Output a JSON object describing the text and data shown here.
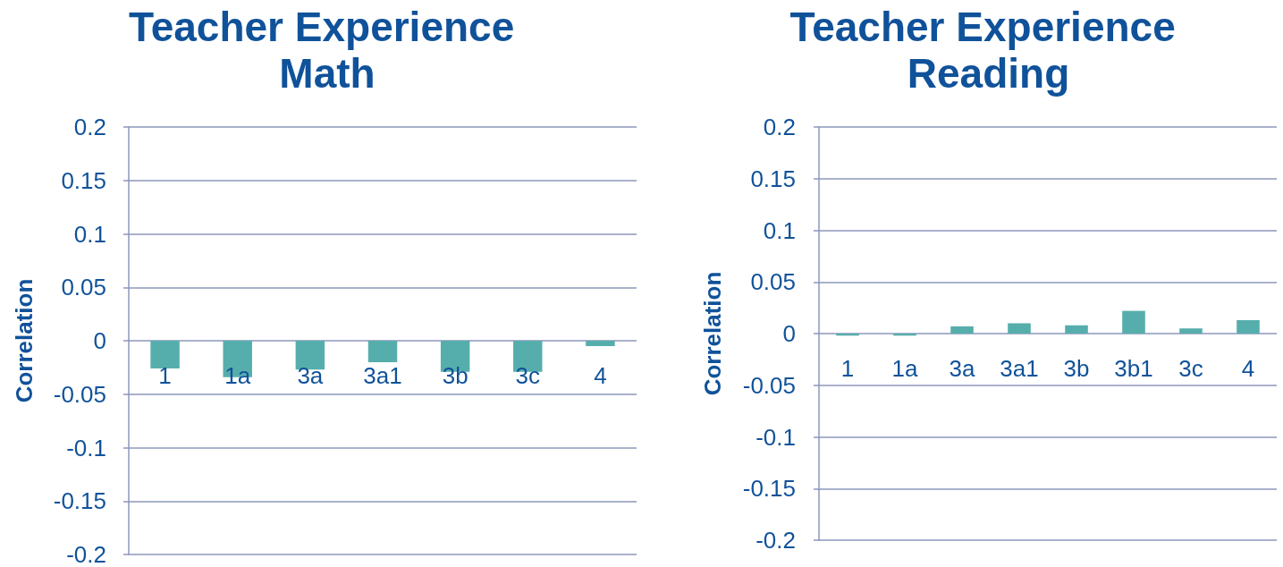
{
  "chart_data": [
    {
      "type": "bar",
      "title": "Teacher Experience Math",
      "ylabel": "Correlation",
      "categories": [
        "1",
        "1a",
        "3a",
        "3a1",
        "3b",
        "3c",
        "4"
      ],
      "values": [
        -0.026,
        -0.034,
        -0.027,
        -0.02,
        -0.029,
        -0.029,
        -0.005
      ],
      "color": "#56aeac",
      "ylim": [
        -0.2,
        0.2
      ],
      "yticks": [
        -0.2,
        -0.15,
        -0.1,
        -0.05,
        0,
        0.05,
        0.1,
        0.15,
        0.2
      ],
      "grid": "y"
    },
    {
      "type": "bar",
      "title": "Teacher Experience Reading",
      "ylabel": "Correlation",
      "categories": [
        "1",
        "1a",
        "3a",
        "3a1",
        "3b",
        "3b1",
        "3c",
        "4"
      ],
      "values": [
        -0.002,
        -0.002,
        0.007,
        0.01,
        0.008,
        0.022,
        0.005,
        0.013
      ],
      "color": "#56aeac",
      "ylim": [
        -0.2,
        0.2
      ],
      "yticks": [
        -0.2,
        -0.15,
        -0.1,
        -0.05,
        0,
        0.05,
        0.1,
        0.15,
        0.2
      ],
      "grid": "y"
    }
  ]
}
